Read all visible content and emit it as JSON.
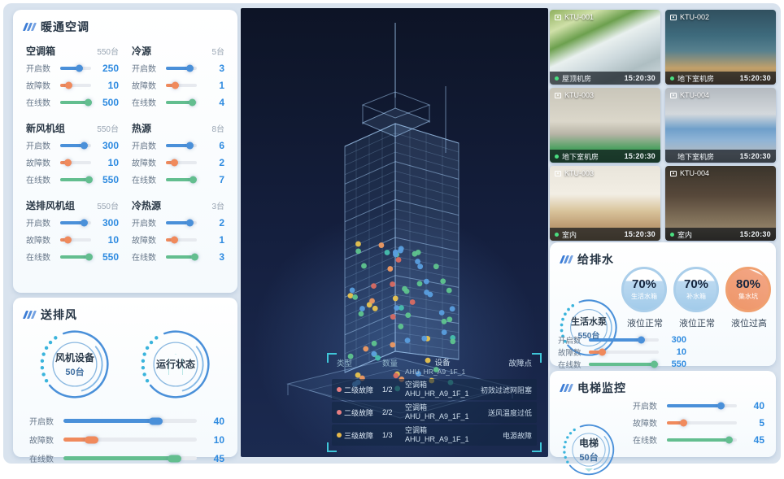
{
  "hvac": {
    "title": "暖通空调",
    "sections": [
      {
        "name": "空调箱",
        "count": "550台",
        "rows": [
          {
            "label": "开启数",
            "value": "250",
            "color": "blue",
            "pct": 62
          },
          {
            "label": "故障数",
            "value": "10",
            "color": "orange",
            "pct": 28
          },
          {
            "label": "在线数",
            "value": "500",
            "color": "green",
            "pct": 92
          }
        ]
      },
      {
        "name": "冷源",
        "count": "5台",
        "rows": [
          {
            "label": "开启数",
            "value": "3",
            "color": "blue",
            "pct": 80
          },
          {
            "label": "故障数",
            "value": "1",
            "color": "orange",
            "pct": 32
          },
          {
            "label": "在线数",
            "value": "4",
            "color": "green",
            "pct": 88
          }
        ]
      },
      {
        "name": "新风机组",
        "count": "550台",
        "rows": [
          {
            "label": "开启数",
            "value": "300",
            "color": "blue",
            "pct": 78
          },
          {
            "label": "故障数",
            "value": "10",
            "color": "orange",
            "pct": 26
          },
          {
            "label": "在线数",
            "value": "550",
            "color": "green",
            "pct": 94
          }
        ]
      },
      {
        "name": "热源",
        "count": "8台",
        "rows": [
          {
            "label": "开启数",
            "value": "6",
            "color": "blue",
            "pct": 80
          },
          {
            "label": "故障数",
            "value": "2",
            "color": "orange",
            "pct": 30
          },
          {
            "label": "在线数",
            "value": "7",
            "color": "green",
            "pct": 90
          }
        ]
      },
      {
        "name": "送排风机组",
        "count": "550台",
        "rows": [
          {
            "label": "开启数",
            "value": "300",
            "color": "blue",
            "pct": 78
          },
          {
            "label": "故障数",
            "value": "10",
            "color": "orange",
            "pct": 26
          },
          {
            "label": "在线数",
            "value": "550",
            "color": "green",
            "pct": 94
          }
        ]
      },
      {
        "name": "冷热源",
        "count": "3台",
        "rows": [
          {
            "label": "开启数",
            "value": "2",
            "color": "blue",
            "pct": 80
          },
          {
            "label": "故障数",
            "value": "1",
            "color": "orange",
            "pct": 30
          },
          {
            "label": "在线数",
            "value": "3",
            "color": "green",
            "pct": 94
          }
        ]
      }
    ]
  },
  "fan": {
    "title": "送排风",
    "gauges": [
      {
        "line1": "风机设备",
        "line2": "50台",
        "icon": false
      },
      {
        "line1": "运行状态",
        "line2": "",
        "icon": true
      }
    ],
    "rows": [
      {
        "label": "开启数",
        "value": "40",
        "color": "blue",
        "pct": 72
      },
      {
        "label": "故障数",
        "value": "10",
        "color": "orange",
        "pct": 24
      },
      {
        "label": "在线数",
        "value": "45",
        "color": "green",
        "pct": 86
      }
    ]
  },
  "fault_table": {
    "headers": [
      "类型",
      "数量",
      "设备",
      "故障点"
    ],
    "partial_device_id": "AHU_HR_A9_1F_1",
    "rows": [
      {
        "dot": "red",
        "level": "二级故障",
        "qty": "1/2",
        "device_type": "空调箱",
        "device_id": "AHU_HR_A9_1F_1",
        "fault": "初效过滤网阻塞"
      },
      {
        "dot": "red",
        "level": "二级故障",
        "qty": "2/2",
        "device_type": "空调箱",
        "device_id": "AHU_HR_A9_1F_1",
        "fault": "送风温度过低"
      },
      {
        "dot": "yellow",
        "level": "三级故障",
        "qty": "1/3",
        "device_type": "空调箱",
        "device_id": "AHU_HR_A9_1F_1",
        "fault": "电源故障"
      }
    ]
  },
  "cameras": [
    {
      "id": "KTU-001",
      "location": "屋顶机房",
      "time": "15:20:30",
      "online": true,
      "scene": "scene-rooftop"
    },
    {
      "id": "KTU-002",
      "location": "地下室机房",
      "time": "15:20:30",
      "online": true,
      "scene": "scene-pipes"
    },
    {
      "id": "KTU-003",
      "location": "地下室机房",
      "time": "15:20:30",
      "online": true,
      "scene": "scene-plant"
    },
    {
      "id": "KTU-004",
      "location": "地下室机房",
      "time": "15:20:30",
      "online": false,
      "scene": "scene-machines"
    },
    {
      "id": "KTU-003",
      "location": "室内",
      "time": "15:20:30",
      "online": true,
      "scene": "scene-office-bright"
    },
    {
      "id": "KTU-004",
      "location": "室内",
      "time": "15:20:30",
      "online": true,
      "scene": "scene-office-dark"
    }
  ],
  "water": {
    "title": "给排水",
    "gauge": {
      "line1": "生活水泵",
      "line2": "550台"
    },
    "tanks": [
      {
        "percent": "70%",
        "name": "生活水箱",
        "status": "液位正常",
        "theme": "blue"
      },
      {
        "percent": "70%",
        "name": "补水箱",
        "status": "液位正常",
        "theme": "blue"
      },
      {
        "percent": "80%",
        "name": "集水坑",
        "status": "液位过高",
        "theme": "orange"
      }
    ],
    "rows": [
      {
        "label": "开启数",
        "value": "300",
        "color": "blue",
        "pct": 76
      },
      {
        "label": "故障数",
        "value": "10",
        "color": "orange",
        "pct": 20
      },
      {
        "label": "在线数",
        "value": "550",
        "color": "green",
        "pct": 94
      }
    ]
  },
  "elevator": {
    "title": "电梯监控",
    "gauge": {
      "line1": "电梯",
      "line2": "50台"
    },
    "rows": [
      {
        "label": "开启数",
        "value": "40",
        "color": "blue",
        "pct": 78
      },
      {
        "label": "故障数",
        "value": "5",
        "color": "orange",
        "pct": 24
      },
      {
        "label": "在线数",
        "value": "45",
        "color": "green",
        "pct": 90
      }
    ]
  },
  "colors": {
    "accent_blue": "#4a90d9",
    "accent_orange": "#f08a5c",
    "accent_green": "#63be8f",
    "value_blue": "#2f8be0",
    "bracket_cyan": "#3fc6d8",
    "online_green": "#4ade80"
  }
}
